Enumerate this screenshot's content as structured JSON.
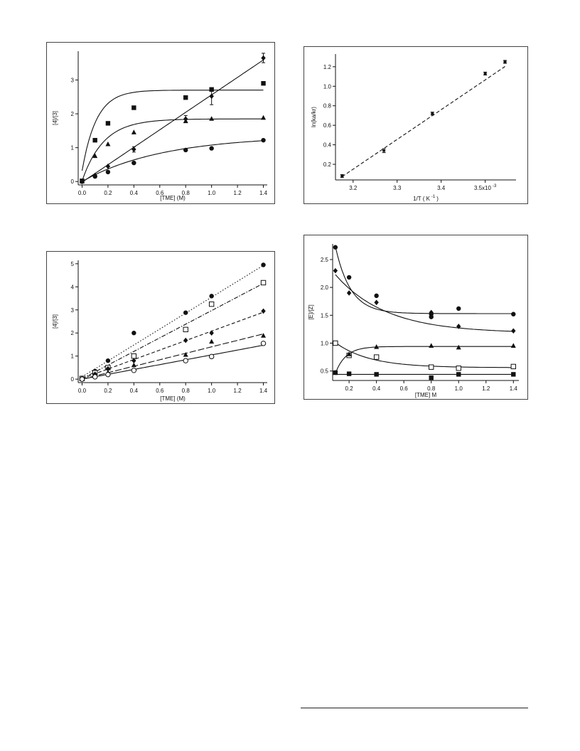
{
  "chart_data": [
    {
      "id": "chart-a",
      "type": "scatter",
      "xlabel": "[TME] (M)",
      "ylabel": "[4]/[3]",
      "xlim": [
        -0.03,
        1.43
      ],
      "ylim": [
        -0.1,
        3.85
      ],
      "xticks": [
        0.0,
        0.2,
        0.4,
        0.6,
        0.8,
        1.0,
        1.2,
        1.4
      ],
      "xtick_labels": [
        "0.0",
        "0.2",
        "0.4",
        "0.6",
        "0.8",
        "1.0",
        "1.2",
        "1.4"
      ],
      "yticks": [
        0,
        1,
        2,
        3
      ],
      "ytick_labels": [
        "0",
        "1",
        "2",
        "3"
      ],
      "series": [
        {
          "marker": "square",
          "fit": "saturation",
          "fit_params": {
            "a": 2.7,
            "b": 0.32,
            "k": 9
          },
          "x": [
            0,
            0.1,
            0.2,
            0.4,
            0.8,
            1.0,
            1.4
          ],
          "y": [
            0.02,
            1.22,
            1.72,
            2.18,
            2.48,
            2.72,
            2.9
          ]
        },
        {
          "marker": "triangle",
          "fit": "saturation",
          "fit_params": {
            "a": 1.85,
            "b": 0.02,
            "k": 6
          },
          "x": [
            0,
            0.1,
            0.2,
            0.4,
            0.8,
            1.0,
            1.4
          ],
          "y": [
            0.0,
            0.75,
            1.1,
            1.45,
            1.78,
            1.85,
            1.88
          ]
        },
        {
          "marker": "circle",
          "fit": "saturation",
          "fit_params": {
            "a": 1.35,
            "b": 0.0,
            "k": 1.6
          },
          "x": [
            0,
            0.1,
            0.2,
            0.4,
            0.8,
            1.0,
            1.4
          ],
          "y": [
            0.0,
            0.15,
            0.28,
            0.55,
            0.93,
            0.98,
            1.22
          ]
        },
        {
          "marker": "diamond",
          "fit": "line",
          "fit_params": {
            "slope": 2.58,
            "intercept": -0.02
          },
          "x": [
            0,
            0.1,
            0.2,
            0.4,
            0.8,
            1.0,
            1.4
          ],
          "y": [
            0.0,
            0.18,
            0.45,
            0.95,
            1.85,
            2.52,
            3.65
          ],
          "error": [
            0,
            0,
            0,
            0.08,
            0.1,
            0.25,
            0.14
          ]
        }
      ]
    },
    {
      "id": "chart-b",
      "type": "scatter",
      "xlabel": "1/T ( K",
      "xlabel_sup": "-1",
      "ylabel": "ln(ka/kr)",
      "xlim": [
        3.16,
        3.57
      ],
      "ylim": [
        0.04,
        1.33
      ],
      "xticks": [
        3.2,
        3.3,
        3.4,
        3.5
      ],
      "xtick_labels": [
        "3.2",
        "3.3",
        "3.4",
        "3.5x10"
      ],
      "xtick_sup": "-3",
      "yticks": [
        0.2,
        0.4,
        0.6,
        0.8,
        1.0,
        1.2
      ],
      "ytick_labels": [
        "0.2",
        "0.4",
        "0.6",
        "0.8",
        "1.0",
        "1.2"
      ],
      "series": [
        {
          "marker": "errorbar",
          "fit": "line-dashed",
          "fit_params": {
            "slope": 3.05,
            "intercept": -9.61
          },
          "x": [
            3.175,
            3.27,
            3.38,
            3.5,
            3.545
          ],
          "y": [
            0.08,
            0.34,
            0.72,
            1.13,
            1.25
          ],
          "error": [
            0.015,
            0.02,
            0.015,
            0.015,
            0.015
          ]
        }
      ]
    },
    {
      "id": "chart-c",
      "type": "scatter",
      "xlabel": "[TME] (M)",
      "ylabel": "[4]/[3]",
      "xlim": [
        -0.03,
        1.43
      ],
      "ylim": [
        -0.15,
        5.15
      ],
      "xticks": [
        0.0,
        0.2,
        0.4,
        0.6,
        0.8,
        1.0,
        1.2,
        1.4
      ],
      "xtick_labels": [
        "0.0",
        "0.2",
        "0.4",
        "0.6",
        "0.8",
        "1.0",
        "1.2",
        "1.4"
      ],
      "yticks": [
        0,
        1,
        2,
        3,
        4,
        5
      ],
      "ytick_labels": [
        "0",
        "1",
        "2",
        "3",
        "4",
        "5"
      ],
      "series": [
        {
          "marker": "circle",
          "fit": "line-dotted",
          "fit_params": {
            "slope": 3.45,
            "intercept": 0.1
          },
          "x": [
            0,
            0.1,
            0.2,
            0.4,
            0.8,
            1.0,
            1.4
          ],
          "y": [
            0.05,
            0.35,
            0.8,
            2.0,
            2.88,
            3.6,
            4.95
          ]
        },
        {
          "marker": "open-square",
          "fit": "line-dashdot",
          "fit_params": {
            "slope": 2.95,
            "intercept": 0.02
          },
          "x": [
            0,
            0.1,
            0.2,
            0.4,
            0.8,
            1.0,
            1.4
          ],
          "y": [
            0.03,
            0.28,
            0.5,
            1.0,
            2.15,
            3.25,
            4.18
          ]
        },
        {
          "marker": "diamond",
          "fit": "line-dashed",
          "fit_params": {
            "slope": 2.05,
            "intercept": 0.03
          },
          "x": [
            0,
            0.1,
            0.2,
            0.4,
            0.8,
            1.0,
            1.4
          ],
          "y": [
            0.02,
            0.22,
            0.45,
            0.8,
            1.68,
            2.0,
            2.95
          ]
        },
        {
          "marker": "triangle",
          "fit": "line-longdash",
          "fit_params": {
            "slope": 1.4,
            "intercept": 0.0
          },
          "x": [
            0,
            0.1,
            0.2,
            0.4,
            0.8,
            1.0,
            1.4
          ],
          "y": [
            0.0,
            0.15,
            0.28,
            0.6,
            1.05,
            1.62,
            1.88
          ]
        },
        {
          "marker": "open-circle",
          "fit": "line-solid",
          "fit_params": {
            "slope": 1.05,
            "intercept": 0.0
          },
          "x": [
            0,
            0.1,
            0.2,
            0.4,
            0.8,
            1.0,
            1.4
          ],
          "y": [
            0.0,
            0.1,
            0.2,
            0.38,
            0.8,
            0.98,
            1.55
          ]
        }
      ]
    },
    {
      "id": "chart-d",
      "type": "scatter",
      "xlabel": "[TME] M",
      "ylabel": "[E]/[Z]",
      "xlim": [
        0.08,
        1.44
      ],
      "ylim": [
        0.33,
        2.78
      ],
      "xticks": [
        0.2,
        0.4,
        0.6,
        0.8,
        1.0,
        1.2,
        1.4
      ],
      "xtick_labels": [
        "0.2",
        "0.4",
        "0.6",
        "0.8",
        "1.0",
        "1.2",
        "1.4"
      ],
      "yticks": [
        0.5,
        1.0,
        1.5,
        2.0,
        2.5
      ],
      "ytick_labels": [
        "0.5",
        "1.0",
        "1.5",
        "2.0",
        "2.5"
      ],
      "series": [
        {
          "marker": "circle",
          "fit": "decay",
          "fit_params": {
            "c": 1.53,
            "d": 1.2,
            "k": 9,
            "x0": 0.1
          },
          "x": [
            0.1,
            0.2,
            0.4,
            0.8,
            0.8,
            1.0,
            1.4
          ],
          "y": [
            2.72,
            2.18,
            1.85,
            1.52,
            1.47,
            1.62,
            1.52
          ]
        },
        {
          "marker": "diamond",
          "fit": "decay",
          "fit_params": {
            "c": 1.18,
            "d": 1.05,
            "k": 2.7,
            "x0": 0.1
          },
          "x": [
            0.1,
            0.2,
            0.4,
            0.8,
            1.0,
            1.4
          ],
          "y": [
            2.3,
            1.9,
            1.73,
            1.55,
            1.3,
            1.22
          ]
        },
        {
          "marker": "open-square",
          "fit": "decay",
          "fit_params": {
            "c": 0.56,
            "d": 0.45,
            "k": 4,
            "x0": 0.1
          },
          "x": [
            0.1,
            0.2,
            0.4,
            0.8,
            1.0,
            1.4
          ],
          "y": [
            1.0,
            0.78,
            0.75,
            0.57,
            0.55,
            0.58
          ]
        },
        {
          "marker": "triangle",
          "fit": "rise",
          "fit_params": {
            "c": 0.94,
            "d": 0.48,
            "k": 13,
            "x0": 0.1
          },
          "x": [
            0.1,
            0.2,
            0.4,
            0.8,
            1.0,
            1.4
          ],
          "y": [
            0.47,
            0.8,
            0.93,
            0.95,
            0.92,
            0.95
          ]
        },
        {
          "marker": "square",
          "fit": "flat",
          "fit_params": {
            "c": 0.44
          },
          "x": [
            0.1,
            0.2,
            0.4,
            0.8,
            1.0,
            1.4
          ],
          "y": [
            0.47,
            0.45,
            0.44,
            0.38,
            0.44,
            0.44
          ]
        }
      ]
    }
  ]
}
